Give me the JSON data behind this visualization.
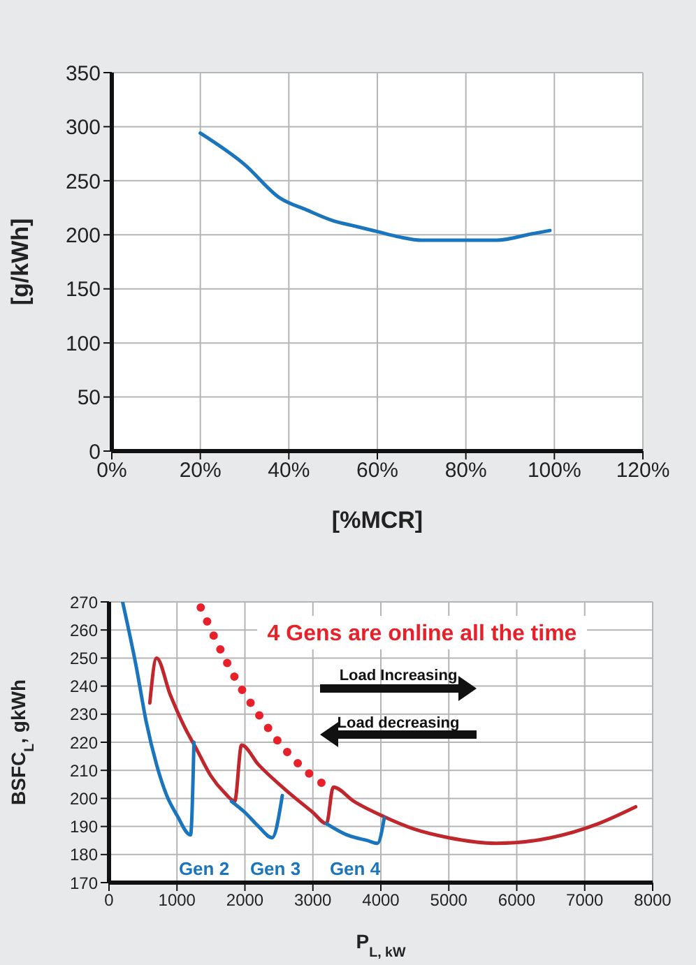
{
  "chart_data": [
    {
      "type": "line",
      "xlabel": "[%MCR]",
      "ylabel": "[g/kWh]",
      "xlim": [
        0,
        120
      ],
      "xticks": [
        {
          "value": 0,
          "label": "0%"
        },
        {
          "value": 20,
          "label": "20%"
        },
        {
          "value": 40,
          "label": "40%"
        },
        {
          "value": 60,
          "label": "60%"
        },
        {
          "value": 80,
          "label": "80%"
        },
        {
          "value": 100,
          "label": "100%"
        },
        {
          "value": 120,
          "label": "120%"
        }
      ],
      "ylim": [
        0,
        350
      ],
      "yticks": [
        0,
        50,
        100,
        150,
        200,
        250,
        300,
        350
      ],
      "grid": true,
      "series": [
        {
          "color": "#1a75bc",
          "x": [
            20,
            30,
            38,
            44,
            50,
            55,
            60,
            65,
            70,
            80,
            87,
            95,
            99
          ],
          "values": [
            294,
            265,
            234,
            223,
            213,
            208,
            203,
            198,
            195,
            195,
            195,
            201,
            204
          ]
        }
      ]
    },
    {
      "type": "line",
      "xlabel": "P$_{L, kW}$",
      "ylabel": "BSFC$_{L}$, gkWh",
      "xlim": [
        0,
        8000
      ],
      "xticks": [
        0,
        1000,
        2000,
        3000,
        4000,
        5000,
        6000,
        7000,
        8000
      ],
      "ylim": [
        170,
        270
      ],
      "yticks": [
        170,
        180,
        190,
        200,
        210,
        220,
        230,
        240,
        250,
        260,
        270
      ],
      "grid": true,
      "series": [
        {
          "color": "#e8202a",
          "line_style": "dotted",
          "x": [
            1350,
            1600,
            1900,
            2200,
            2500,
            2800,
            3100,
            3300
          ],
          "values": [
            268,
            255,
            241,
            230,
            220,
            212,
            206,
            203
          ]
        },
        {
          "color": "#c0272d",
          "x": [
            600,
            700,
            900,
            1100,
            1300,
            1500,
            1700,
            1850,
            1950,
            2200,
            2600,
            3000,
            3200,
            3300,
            3600,
            4000,
            4500,
            5000,
            5700,
            6500,
            7200,
            7750
          ],
          "values": [
            234,
            250,
            237,
            226,
            217,
            208,
            202,
            199,
            219,
            212,
            203,
            195,
            191,
            204,
            199,
            194,
            189,
            186,
            184,
            186,
            191,
            197
          ]
        },
        {
          "color": "#1a75bc",
          "x": [
            200,
            400,
            550,
            700,
            850,
            1000,
            1200,
            1250
          ],
          "values": [
            270,
            247,
            227,
            212,
            201,
            194,
            187,
            220
          ]
        },
        {
          "color": "#1a75bc",
          "x": [
            1800,
            2000,
            2200,
            2400,
            2550
          ],
          "values": [
            199,
            195,
            190,
            186,
            201
          ]
        },
        {
          "color": "#1a75bc",
          "x": [
            3200,
            3500,
            3800,
            3950,
            4050
          ],
          "values": [
            191,
            187,
            185,
            184,
            193
          ]
        }
      ],
      "annotations": [
        "4 Gens are online all the time",
        "Load Increasing",
        "Load decreasing",
        "Gen 2",
        "Gen 3",
        "Gen 4"
      ]
    }
  ]
}
